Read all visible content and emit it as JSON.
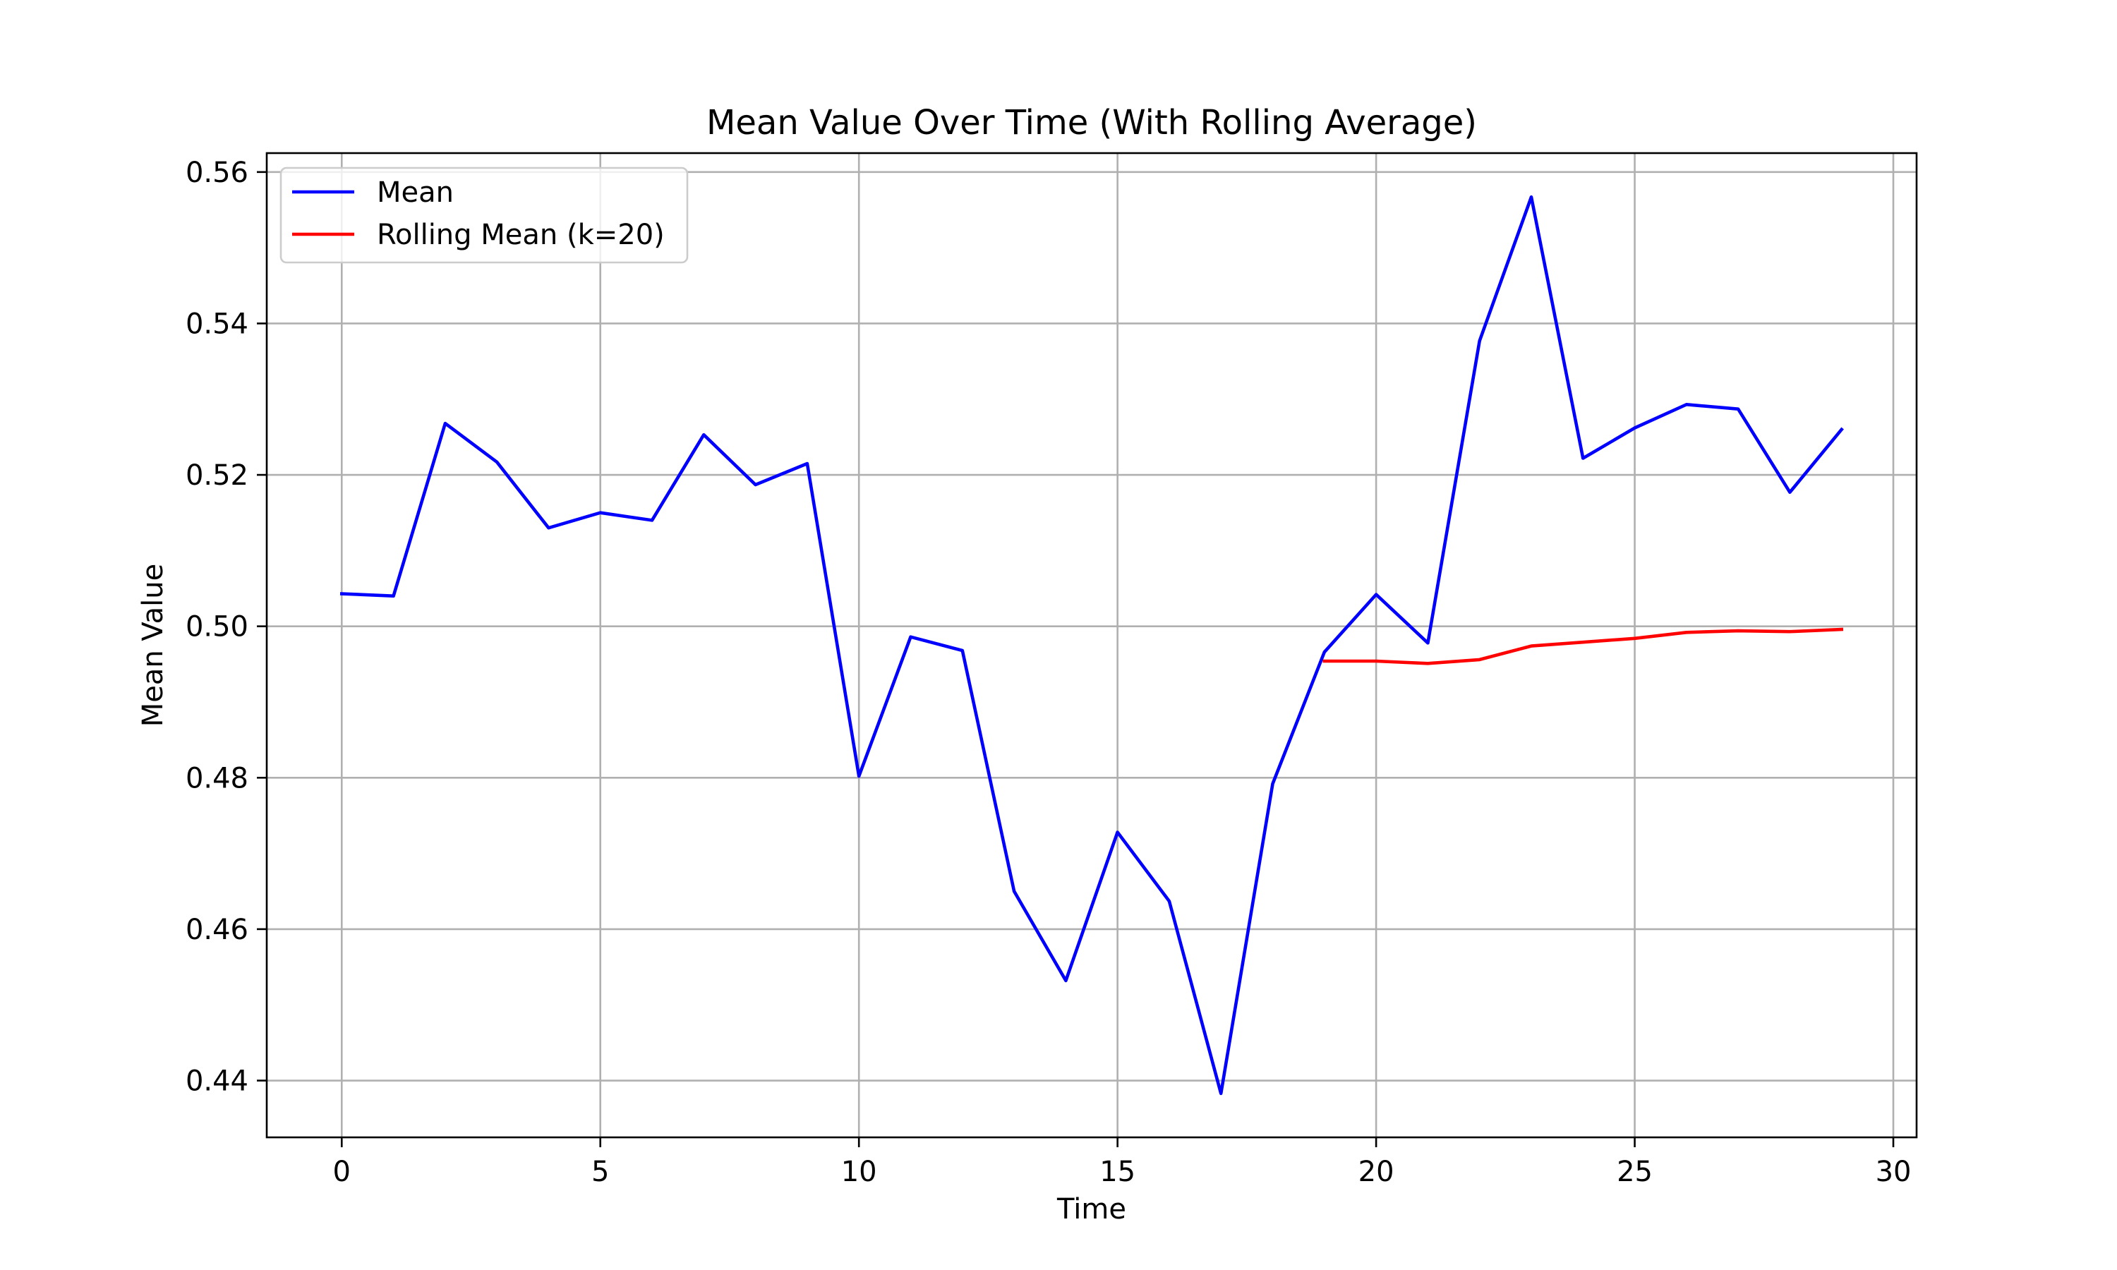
{
  "chart_data": {
    "type": "line",
    "title": "Mean Value Over Time (With Rolling Average)",
    "xlabel": "Time",
    "ylabel": "Mean Value",
    "xlim": [
      -1.45,
      30.45
    ],
    "ylim": [
      0.4325,
      0.5625
    ],
    "xticks": [
      0,
      5,
      10,
      15,
      20,
      25,
      30
    ],
    "xtick_labels": [
      "0",
      "5",
      "10",
      "15",
      "20",
      "25",
      "30"
    ],
    "yticks": [
      0.44,
      0.46,
      0.48,
      0.5,
      0.52,
      0.54,
      0.56
    ],
    "ytick_labels": [
      "0.44",
      "0.46",
      "0.48",
      "0.50",
      "0.52",
      "0.54",
      "0.56"
    ],
    "grid": true,
    "legend_position": "upper-left",
    "series": [
      {
        "name": "Mean",
        "color": "#0000ff",
        "x": [
          0,
          1,
          2,
          3,
          4,
          5,
          6,
          7,
          8,
          9,
          10,
          11,
          12,
          13,
          14,
          15,
          16,
          17,
          18,
          19,
          20,
          21,
          22,
          23,
          24,
          25,
          26,
          27,
          28,
          29
        ],
        "y": [
          0.5043,
          0.504,
          0.5268,
          0.5217,
          0.513,
          0.515,
          0.514,
          0.5253,
          0.5187,
          0.5215,
          0.4802,
          0.4986,
          0.4968,
          0.465,
          0.4532,
          0.4728,
          0.4637,
          0.4383,
          0.4792,
          0.4966,
          0.5042,
          0.4978,
          0.5377,
          0.5567,
          0.5222,
          0.5262,
          0.5293,
          0.5287,
          0.5177,
          0.526
        ]
      },
      {
        "name": "Rolling Mean (k=20)",
        "color": "#ff0000",
        "x": [
          19,
          20,
          21,
          22,
          23,
          24,
          25,
          26,
          27,
          28,
          29
        ],
        "y": [
          0.4954,
          0.4954,
          0.4951,
          0.4956,
          0.4974,
          0.4979,
          0.4984,
          0.4992,
          0.4994,
          0.4993,
          0.4996
        ]
      }
    ]
  }
}
